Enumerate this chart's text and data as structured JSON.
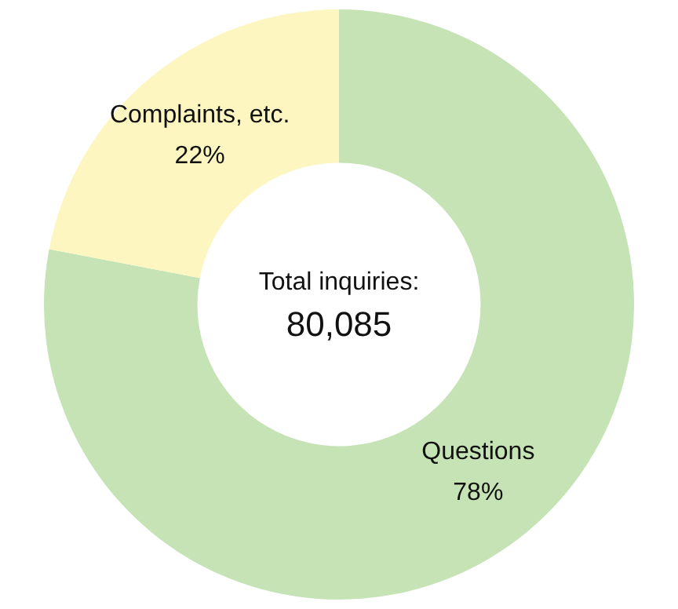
{
  "chart_data": {
    "type": "donut",
    "categories": [
      "Questions",
      "Complaints, etc."
    ],
    "values": [
      78,
      22
    ],
    "colors": [
      "#c5e3b5",
      "#fdf6c0"
    ],
    "value_labels": [
      "78%",
      "22%"
    ],
    "legend": false,
    "annotations": [
      "Total inquiries:",
      "80,085"
    ]
  }
}
